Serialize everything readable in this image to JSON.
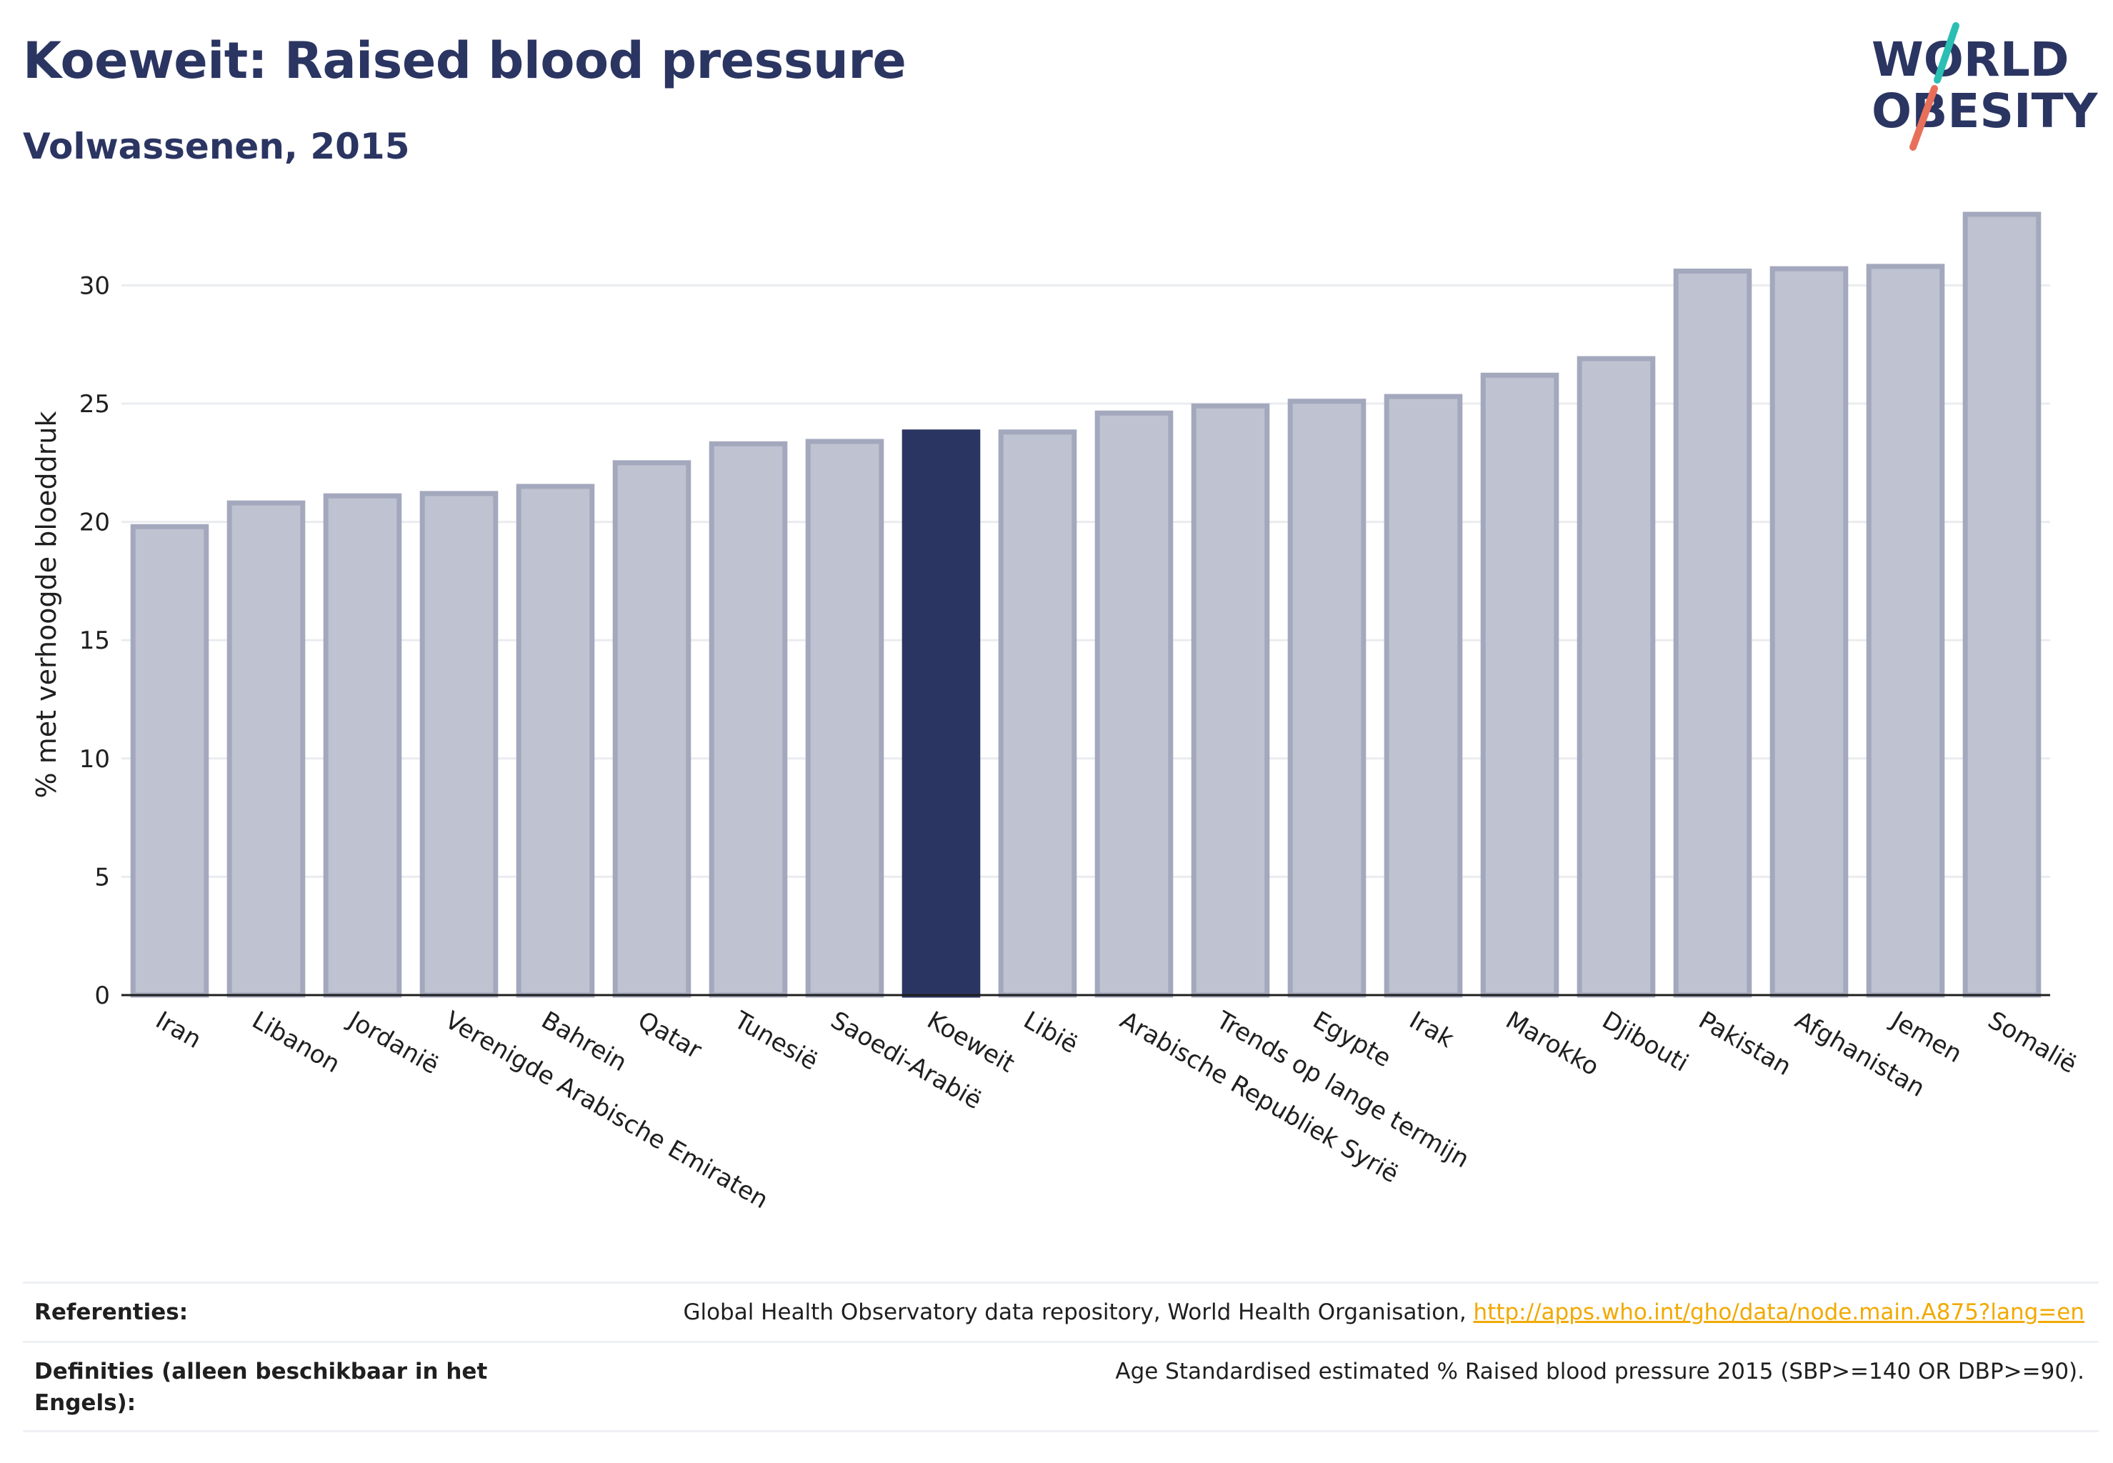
{
  "header": {
    "title": "Koeweit: Raised blood pressure",
    "subtitle": "Volwassenen, 2015"
  },
  "logo": {
    "line1": "WORLD",
    "line2": "OBESITY",
    "colors": {
      "text": "#2b3562",
      "slash_top": "#2bbfb3",
      "slash_bottom": "#e8705a"
    }
  },
  "chart_data": {
    "type": "bar",
    "title": "Koeweit: Raised blood pressure",
    "subtitle": "Volwassenen, 2015",
    "xlabel": "",
    "ylabel": "% met verhoogde bloeddruk",
    "ylim": [
      0,
      33
    ],
    "yticks": [
      0,
      5,
      10,
      15,
      20,
      25,
      30
    ],
    "grid": true,
    "highlight": "Koeweit",
    "colors": {
      "bar": "#bfc2d0",
      "bar_border": "#a3a8bd",
      "highlight": "#2b3562"
    },
    "categories": [
      "Iran",
      "Libanon",
      "Jordanië",
      "Verenigde Arabische Emiraten",
      "Bahrein",
      "Qatar",
      "Tunesië",
      "Saoedi-Arabië",
      "Koeweit",
      "Libië",
      "Arabische Republiek Syrië",
      "Trends op lange termijn",
      "Egypte",
      "Irak",
      "Marokko",
      "Djibouti",
      "Pakistan",
      "Afghanistan",
      "Jemen",
      "Somalië"
    ],
    "values": [
      19.8,
      20.8,
      21.1,
      21.2,
      21.5,
      22.5,
      23.3,
      23.4,
      23.8,
      23.8,
      24.6,
      24.9,
      25.1,
      25.3,
      26.2,
      26.9,
      30.6,
      30.7,
      30.8,
      33.0
    ]
  },
  "references": {
    "ref_label": "Referenties:",
    "ref_text": "Global Health Observatory data repository, World Health Organisation, ",
    "ref_link": "http://apps.who.int/gho/data/node.main.A875?lang=en",
    "def_label": "Definities (alleen beschikbaar in het Engels):",
    "def_text": "Age Standardised estimated % Raised blood pressure 2015 (SBP>=140 OR DBP>=90)."
  }
}
